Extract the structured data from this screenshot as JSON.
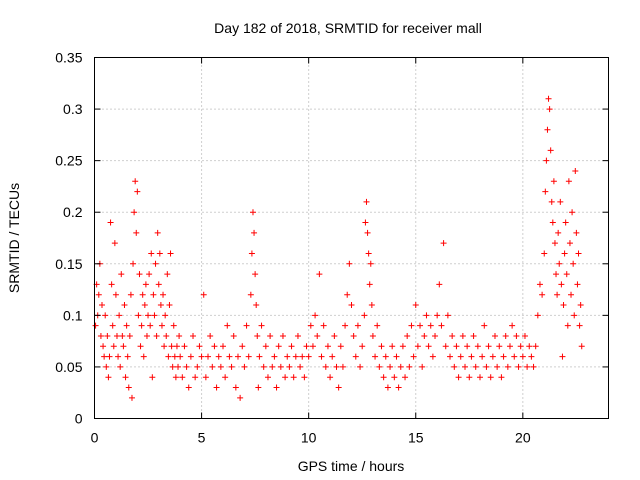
{
  "chart_data": {
    "type": "scatter",
    "title": "Day 182 of 2018, SRMTID for receiver mall",
    "xlabel": "GPS time / hours",
    "ylabel": "SRMTID / TECUs",
    "xlim": [
      0,
      24
    ],
    "ylim": [
      0,
      0.35
    ],
    "x_ticks": [
      0,
      5,
      10,
      15,
      20
    ],
    "x_tick_labels": [
      "0",
      "5",
      "10",
      "15",
      "20"
    ],
    "y_ticks": [
      0,
      0.05,
      0.1,
      0.15,
      0.2,
      0.25,
      0.3,
      0.35
    ],
    "y_tick_labels": [
      "0",
      "0.05",
      "0.1",
      "0.15",
      "0.2",
      "0.25",
      "0.3",
      "0.35"
    ],
    "grid": true,
    "legend": false,
    "marker": "plus",
    "color": "#ff0000",
    "series": [
      {
        "values": [
          [
            0.05,
            0.09
          ],
          [
            0.1,
            0.13
          ],
          [
            0.15,
            0.1
          ],
          [
            0.2,
            0.12
          ],
          [
            0.25,
            0.15
          ],
          [
            0.3,
            0.08
          ],
          [
            0.35,
            0.11
          ],
          [
            0.4,
            0.07
          ],
          [
            0.45,
            0.06
          ],
          [
            0.5,
            0.1
          ],
          [
            0.55,
            0.05
          ],
          [
            0.6,
            0.08
          ],
          [
            0.65,
            0.04
          ],
          [
            0.7,
            0.06
          ],
          [
            0.75,
            0.19
          ],
          [
            0.8,
            0.13
          ],
          [
            0.85,
            0.09
          ],
          [
            0.9,
            0.07
          ],
          [
            0.95,
            0.17
          ],
          [
            1.0,
            0.12
          ],
          [
            1.05,
            0.08
          ],
          [
            1.1,
            0.06
          ],
          [
            1.15,
            0.1
          ],
          [
            1.2,
            0.05
          ],
          [
            1.25,
            0.14
          ],
          [
            1.3,
            0.08
          ],
          [
            1.35,
            0.07
          ],
          [
            1.4,
            0.11
          ],
          [
            1.45,
            0.04
          ],
          [
            1.5,
            0.09
          ],
          [
            1.55,
            0.06
          ],
          [
            1.6,
            0.03
          ],
          [
            1.65,
            0.08
          ],
          [
            1.7,
            0.12
          ],
          [
            1.75,
            0.02
          ],
          [
            1.8,
            0.15
          ],
          [
            1.85,
            0.2
          ],
          [
            1.9,
            0.23
          ],
          [
            1.95,
            0.18
          ],
          [
            2.0,
            0.22
          ],
          [
            2.05,
            0.1
          ],
          [
            2.1,
            0.14
          ],
          [
            2.15,
            0.07
          ],
          [
            2.2,
            0.09
          ],
          [
            2.25,
            0.12
          ],
          [
            2.3,
            0.06
          ],
          [
            2.35,
            0.11
          ],
          [
            2.4,
            0.13
          ],
          [
            2.45,
            0.08
          ],
          [
            2.5,
            0.1
          ],
          [
            2.55,
            0.14
          ],
          [
            2.6,
            0.09
          ],
          [
            2.65,
            0.16
          ],
          [
            2.7,
            0.04
          ],
          [
            2.75,
            0.12
          ],
          [
            2.8,
            0.1
          ],
          [
            2.85,
            0.15
          ],
          [
            2.9,
            0.08
          ],
          [
            2.95,
            0.18
          ],
          [
            3.0,
            0.13
          ],
          [
            3.05,
            0.16
          ],
          [
            3.1,
            0.11
          ],
          [
            3.15,
            0.09
          ],
          [
            3.2,
            0.12
          ],
          [
            3.25,
            0.07
          ],
          [
            3.3,
            0.1
          ],
          [
            3.35,
            0.08
          ],
          [
            3.4,
            0.14
          ],
          [
            3.45,
            0.06
          ],
          [
            3.5,
            0.11
          ],
          [
            3.55,
            0.16
          ],
          [
            3.6,
            0.07
          ],
          [
            3.65,
            0.05
          ],
          [
            3.7,
            0.09
          ],
          [
            3.75,
            0.06
          ],
          [
            3.8,
            0.04
          ],
          [
            3.85,
            0.07
          ],
          [
            3.9,
            0.05
          ],
          [
            3.95,
            0.08
          ],
          [
            4.0,
            0.06
          ],
          [
            4.1,
            0.04
          ],
          [
            4.2,
            0.07
          ],
          [
            4.3,
            0.05
          ],
          [
            4.4,
            0.03
          ],
          [
            4.5,
            0.06
          ],
          [
            4.6,
            0.08
          ],
          [
            4.7,
            0.04
          ],
          [
            4.8,
            0.05
          ],
          [
            4.9,
            0.07
          ],
          [
            5.0,
            0.06
          ],
          [
            5.1,
            0.12
          ],
          [
            5.2,
            0.04
          ],
          [
            5.3,
            0.06
          ],
          [
            5.4,
            0.08
          ],
          [
            5.5,
            0.05
          ],
          [
            5.6,
            0.07
          ],
          [
            5.7,
            0.03
          ],
          [
            5.8,
            0.06
          ],
          [
            5.9,
            0.05
          ],
          [
            6.0,
            0.07
          ],
          [
            6.1,
            0.04
          ],
          [
            6.2,
            0.09
          ],
          [
            6.3,
            0.06
          ],
          [
            6.4,
            0.05
          ],
          [
            6.5,
            0.08
          ],
          [
            6.6,
            0.03
          ],
          [
            6.7,
            0.06
          ],
          [
            6.8,
            0.02
          ],
          [
            6.9,
            0.07
          ],
          [
            7.0,
            0.05
          ],
          [
            7.1,
            0.09
          ],
          [
            7.2,
            0.06
          ],
          [
            7.3,
            0.12
          ],
          [
            7.35,
            0.16
          ],
          [
            7.4,
            0.2
          ],
          [
            7.45,
            0.18
          ],
          [
            7.5,
            0.14
          ],
          [
            7.55,
            0.11
          ],
          [
            7.6,
            0.08
          ],
          [
            7.65,
            0.03
          ],
          [
            7.7,
            0.06
          ],
          [
            7.8,
            0.09
          ],
          [
            7.9,
            0.05
          ],
          [
            8.0,
            0.07
          ],
          [
            8.1,
            0.04
          ],
          [
            8.2,
            0.08
          ],
          [
            8.3,
            0.05
          ],
          [
            8.4,
            0.06
          ],
          [
            8.5,
            0.03
          ],
          [
            8.6,
            0.07
          ],
          [
            8.7,
            0.05
          ],
          [
            8.8,
            0.08
          ],
          [
            8.9,
            0.04
          ],
          [
            9.0,
            0.06
          ],
          [
            9.1,
            0.05
          ],
          [
            9.2,
            0.07
          ],
          [
            9.3,
            0.04
          ],
          [
            9.4,
            0.06
          ],
          [
            9.5,
            0.08
          ],
          [
            9.6,
            0.05
          ],
          [
            9.7,
            0.06
          ],
          [
            9.8,
            0.04
          ],
          [
            9.9,
            0.07
          ],
          [
            10.0,
            0.06
          ],
          [
            10.1,
            0.09
          ],
          [
            10.2,
            0.07
          ],
          [
            10.3,
            0.1
          ],
          [
            10.4,
            0.08
          ],
          [
            10.5,
            0.14
          ],
          [
            10.6,
            0.06
          ],
          [
            10.7,
            0.09
          ],
          [
            10.8,
            0.05
          ],
          [
            10.9,
            0.07
          ],
          [
            11.0,
            0.04
          ],
          [
            11.1,
            0.06
          ],
          [
            11.2,
            0.08
          ],
          [
            11.3,
            0.05
          ],
          [
            11.4,
            0.03
          ],
          [
            11.5,
            0.07
          ],
          [
            11.6,
            0.05
          ],
          [
            11.7,
            0.09
          ],
          [
            11.8,
            0.12
          ],
          [
            11.9,
            0.15
          ],
          [
            12.0,
            0.11
          ],
          [
            12.1,
            0.08
          ],
          [
            12.2,
            0.06
          ],
          [
            12.3,
            0.09
          ],
          [
            12.4,
            0.05
          ],
          [
            12.5,
            0.07
          ],
          [
            12.6,
            0.1
          ],
          [
            12.65,
            0.19
          ],
          [
            12.7,
            0.21
          ],
          [
            12.75,
            0.18
          ],
          [
            12.8,
            0.16
          ],
          [
            12.85,
            0.13
          ],
          [
            12.9,
            0.15
          ],
          [
            12.95,
            0.11
          ],
          [
            13.0,
            0.08
          ],
          [
            13.1,
            0.06
          ],
          [
            13.2,
            0.09
          ],
          [
            13.3,
            0.05
          ],
          [
            13.4,
            0.07
          ],
          [
            13.5,
            0.04
          ],
          [
            13.6,
            0.06
          ],
          [
            13.7,
            0.03
          ],
          [
            13.8,
            0.05
          ],
          [
            13.9,
            0.07
          ],
          [
            14.0,
            0.04
          ],
          [
            14.1,
            0.06
          ],
          [
            14.2,
            0.03
          ],
          [
            14.3,
            0.05
          ],
          [
            14.4,
            0.07
          ],
          [
            14.5,
            0.04
          ],
          [
            14.6,
            0.08
          ],
          [
            14.7,
            0.05
          ],
          [
            14.8,
            0.09
          ],
          [
            14.9,
            0.06
          ],
          [
            15.0,
            0.11
          ],
          [
            15.1,
            0.07
          ],
          [
            15.2,
            0.09
          ],
          [
            15.3,
            0.05
          ],
          [
            15.4,
            0.08
          ],
          [
            15.5,
            0.1
          ],
          [
            15.6,
            0.07
          ],
          [
            15.7,
            0.09
          ],
          [
            15.8,
            0.06
          ],
          [
            15.9,
            0.08
          ],
          [
            16.0,
            0.1
          ],
          [
            16.1,
            0.13
          ],
          [
            16.2,
            0.09
          ],
          [
            16.3,
            0.17
          ],
          [
            16.4,
            0.07
          ],
          [
            16.5,
            0.1
          ],
          [
            16.6,
            0.06
          ],
          [
            16.7,
            0.08
          ],
          [
            16.8,
            0.05
          ],
          [
            16.9,
            0.07
          ],
          [
            17.0,
            0.04
          ],
          [
            17.1,
            0.06
          ],
          [
            17.2,
            0.08
          ],
          [
            17.3,
            0.05
          ],
          [
            17.4,
            0.07
          ],
          [
            17.5,
            0.04
          ],
          [
            17.6,
            0.06
          ],
          [
            17.7,
            0.08
          ],
          [
            17.8,
            0.05
          ],
          [
            17.9,
            0.07
          ],
          [
            18.0,
            0.04
          ],
          [
            18.1,
            0.06
          ],
          [
            18.2,
            0.09
          ],
          [
            18.3,
            0.05
          ],
          [
            18.4,
            0.07
          ],
          [
            18.5,
            0.04
          ],
          [
            18.6,
            0.06
          ],
          [
            18.7,
            0.08
          ],
          [
            18.8,
            0.05
          ],
          [
            18.9,
            0.07
          ],
          [
            19.0,
            0.04
          ],
          [
            19.1,
            0.06
          ],
          [
            19.2,
            0.08
          ],
          [
            19.3,
            0.05
          ],
          [
            19.4,
            0.07
          ],
          [
            19.5,
            0.09
          ],
          [
            19.6,
            0.06
          ],
          [
            19.7,
            0.08
          ],
          [
            19.8,
            0.05
          ],
          [
            19.9,
            0.07
          ],
          [
            20.0,
            0.06
          ],
          [
            20.1,
            0.08
          ],
          [
            20.2,
            0.05
          ],
          [
            20.3,
            0.07
          ],
          [
            20.4,
            0.06
          ],
          [
            20.5,
            0.05
          ],
          [
            20.6,
            0.07
          ],
          [
            20.7,
            0.1
          ],
          [
            20.8,
            0.13
          ],
          [
            20.9,
            0.12
          ],
          [
            21.0,
            0.16
          ],
          [
            21.05,
            0.22
          ],
          [
            21.1,
            0.25
          ],
          [
            21.15,
            0.28
          ],
          [
            21.2,
            0.31
          ],
          [
            21.25,
            0.3
          ],
          [
            21.3,
            0.26
          ],
          [
            21.35,
            0.21
          ],
          [
            21.4,
            0.19
          ],
          [
            21.45,
            0.23
          ],
          [
            21.5,
            0.17
          ],
          [
            21.55,
            0.14
          ],
          [
            21.6,
            0.12
          ],
          [
            21.65,
            0.18
          ],
          [
            21.7,
            0.15
          ],
          [
            21.75,
            0.21
          ],
          [
            21.8,
            0.13
          ],
          [
            21.85,
            0.06
          ],
          [
            21.9,
            0.11
          ],
          [
            21.95,
            0.16
          ],
          [
            22.0,
            0.19
          ],
          [
            22.05,
            0.14
          ],
          [
            22.1,
            0.09
          ],
          [
            22.15,
            0.23
          ],
          [
            22.2,
            0.17
          ],
          [
            22.25,
            0.12
          ],
          [
            22.3,
            0.2
          ],
          [
            22.35,
            0.15
          ],
          [
            22.4,
            0.1
          ],
          [
            22.45,
            0.24
          ],
          [
            22.5,
            0.18
          ],
          [
            22.55,
            0.13
          ],
          [
            22.6,
            0.16
          ],
          [
            22.65,
            0.09
          ],
          [
            22.7,
            0.11
          ],
          [
            22.75,
            0.07
          ]
        ]
      }
    ]
  }
}
